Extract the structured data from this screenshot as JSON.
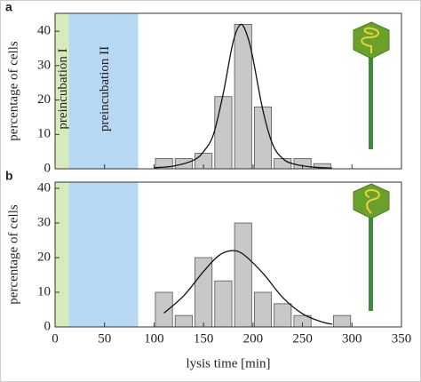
{
  "chart_data": [
    {
      "type": "histogram",
      "panel_label": "a",
      "y_label": "percentage of cells",
      "bins": [
        100,
        120,
        140,
        160,
        180,
        200,
        220,
        240,
        260,
        280,
        300
      ],
      "counts": [
        3,
        3,
        4.5,
        21,
        42,
        18,
        3,
        3,
        1.5,
        0
      ],
      "color": "#c8c8c8",
      "fit": {
        "x": [
          100,
          120,
          140,
          150,
          160,
          170,
          180,
          188,
          195,
          200,
          210,
          220,
          230,
          240,
          260,
          280
        ],
        "values": [
          0.3,
          0.8,
          2.5,
          5,
          10,
          22,
          37,
          42,
          38,
          32,
          17,
          7,
          3,
          1.5,
          0.5,
          0.2
        ],
        "color": "#111111"
      },
      "regions": [
        {
          "label": "preincubation I",
          "start": 0,
          "end": 14,
          "color": "#d6ebbb",
          "text_color": "#8cbf46"
        },
        {
          "label": "preincubation II",
          "start": 14,
          "end": 84,
          "color": "#b7d8f3",
          "text_color": "#3a8fd3"
        }
      ],
      "xlim": [
        0,
        350
      ],
      "xticks": [
        0,
        50,
        100,
        150,
        200,
        250,
        300,
        350
      ],
      "show_xtick_labels": false,
      "ylim": [
        0,
        45.2
      ],
      "yticks": [
        0,
        10,
        20,
        30,
        40
      ]
    },
    {
      "type": "histogram",
      "panel_label": "b",
      "y_label": "percentage of cells",
      "x_label": "lysis time [min]",
      "bins": [
        100,
        120,
        140,
        160,
        180,
        200,
        220,
        240,
        260,
        280,
        300
      ],
      "counts": [
        10,
        3.3,
        20,
        13.3,
        30,
        10,
        6.7,
        3.3,
        0,
        3.3
      ],
      "color": "#c8c8c8",
      "fit": {
        "x": [
          110,
          130,
          150,
          165,
          178,
          190,
          210,
          230,
          250,
          270,
          280
        ],
        "values": [
          4,
          9,
          16,
          20.5,
          22,
          21,
          15.5,
          8.5,
          3.8,
          1.4,
          0.8
        ],
        "color": "#111111"
      },
      "regions": [
        {
          "start": 0,
          "end": 14,
          "color": "#d6ebbb"
        },
        {
          "start": 14,
          "end": 84,
          "color": "#b7d8f3"
        }
      ],
      "xlim": [
        0,
        350
      ],
      "xticks": [
        0,
        50,
        100,
        150,
        200,
        250,
        300,
        350
      ],
      "show_xtick_labels": true,
      "ylim": [
        0,
        41.8
      ],
      "yticks": [
        0,
        10,
        20,
        30,
        40
      ]
    }
  ]
}
